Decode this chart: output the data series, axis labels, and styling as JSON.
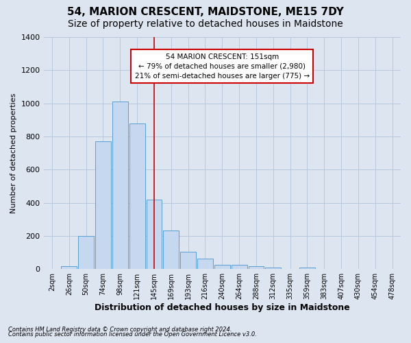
{
  "title": "54, MARION CRESCENT, MAIDSTONE, ME15 7DY",
  "subtitle": "Size of property relative to detached houses in Maidstone",
  "xlabel": "Distribution of detached houses by size in Maidstone",
  "ylabel": "Number of detached properties",
  "footnote1": "Contains HM Land Registry data © Crown copyright and database right 2024.",
  "footnote2": "Contains public sector information licensed under the Open Government Licence v3.0.",
  "categories": [
    "2sqm",
    "26sqm",
    "50sqm",
    "74sqm",
    "98sqm",
    "121sqm",
    "145sqm",
    "169sqm",
    "193sqm",
    "216sqm",
    "240sqm",
    "264sqm",
    "288sqm",
    "312sqm",
    "335sqm",
    "359sqm",
    "383sqm",
    "407sqm",
    "430sqm",
    "454sqm",
    "478sqm"
  ],
  "values": [
    0,
    20,
    200,
    770,
    1010,
    880,
    420,
    235,
    105,
    65,
    25,
    25,
    20,
    10,
    0,
    10,
    0,
    0,
    0,
    0,
    0
  ],
  "bar_color": "#c5d8f0",
  "bar_edge_color": "#5a9fd4",
  "highlight_index": 6,
  "highlight_line_color": "#cc0000",
  "annotation_text": "54 MARION CRESCENT: 151sqm\n← 79% of detached houses are smaller (2,980)\n21% of semi-detached houses are larger (775) →",
  "annotation_box_color": "#cc0000",
  "annotation_text_color": "#000000",
  "ylim": [
    0,
    1400
  ],
  "yticks": [
    0,
    200,
    400,
    600,
    800,
    1000,
    1200,
    1400
  ],
  "background_color": "#dde5f0",
  "plot_background": "#dde5f0",
  "grid_color": "#b8c8dc",
  "title_fontsize": 11,
  "subtitle_fontsize": 10,
  "bar_width": 0.92
}
